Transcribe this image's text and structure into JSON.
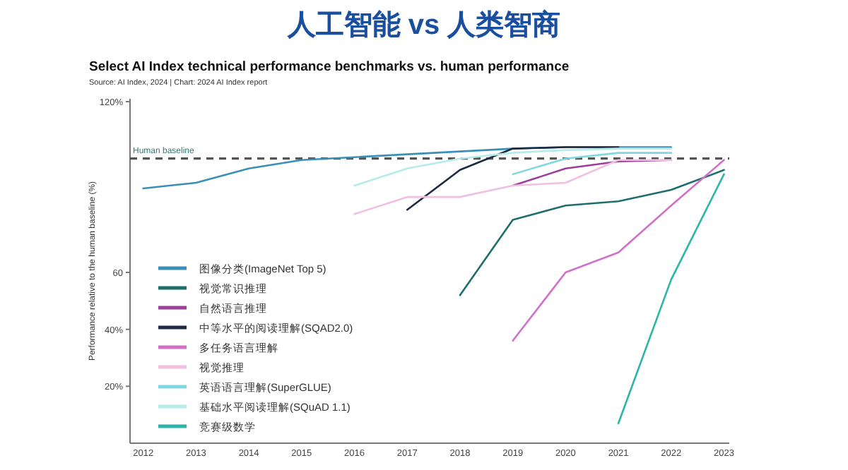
{
  "chart_data": {
    "type": "line",
    "title": "人工智能 vs 人类智商",
    "subtitle": "Select AI Index technical performance benchmarks vs. human performance",
    "annotations": [
      "Source: AI Index, 2024 | Chart: 2024 AI Index report"
    ],
    "ylabel": "Performance relative to the human baseline (%)",
    "xlim": [
      2011.75,
      2023.1
    ],
    "ylim": [
      0,
      121
    ],
    "xticks": [
      2012,
      2013,
      2014,
      2015,
      2016,
      2017,
      2018,
      2019,
      2020,
      2021,
      2022,
      2023
    ],
    "yticks": [
      {
        "value": 20,
        "label": "20%"
      },
      {
        "value": 40,
        "label": "40%"
      },
      {
        "value": 60,
        "label": "60"
      },
      {
        "value": 120,
        "label": "120%"
      }
    ],
    "grid": false,
    "legend": "bottom left",
    "marker": "none",
    "line_style": "solid",
    "ref_lines": [
      {
        "axis": "y",
        "value": 100,
        "label": "Human baseline",
        "color": "#555555",
        "line_style": "dashed"
      }
    ],
    "series": [
      {
        "name": "图像分类(ImageNet Top 5)",
        "color": "#3a8fb7",
        "x": [
          2012,
          2013,
          2014,
          2015,
          2016,
          2017,
          2018,
          2019,
          2020,
          2021,
          2022
        ],
        "values": [
          89.5,
          91.5,
          96.5,
          99.5,
          100.5,
          101.5,
          102.5,
          103.5,
          104,
          104,
          104
        ]
      },
      {
        "name": "视觉常识推理",
        "color": "#1f6e6e",
        "x": [
          2018,
          2019,
          2020,
          2021,
          2022,
          2023
        ],
        "values": [
          52,
          78.5,
          83.5,
          85,
          89,
          96
        ]
      },
      {
        "name": "自然语言推理",
        "color": "#9b3f9b",
        "x": [
          2019,
          2020,
          2021,
          2022
        ],
        "values": [
          90.5,
          96.5,
          99,
          99.5
        ]
      },
      {
        "name": "中等水平的阅读理解(SQAD2.0)",
        "color": "#1e2a44",
        "x": [
          2017,
          2018,
          2019,
          2020,
          2021
        ],
        "values": [
          82,
          96,
          103.5,
          104,
          104
        ]
      },
      {
        "name": "多任务语言理解",
        "color": "#d070c8",
        "x": [
          2019,
          2020,
          2021,
          2022,
          2023
        ],
        "values": [
          36,
          60,
          67,
          83.5,
          99.5
        ]
      },
      {
        "name": "视觉推理",
        "color": "#f0c0e0",
        "x": [
          2016,
          2017,
          2018,
          2019,
          2020,
          2021,
          2022
        ],
        "values": [
          80.5,
          86.5,
          86.5,
          90.5,
          91.5,
          99.5,
          99.5
        ]
      },
      {
        "name": "英语语言理解(SuperGLUE)",
        "color": "#7fd8e0",
        "x": [
          2019,
          2020,
          2021,
          2022
        ],
        "values": [
          94.5,
          100,
          102,
          102
        ]
      },
      {
        "name": "基础水平阅读理解(SQuAD 1.1)",
        "color": "#b5ebe8",
        "x": [
          2016,
          2017,
          2018,
          2019,
          2020,
          2021,
          2022
        ],
        "values": [
          90.5,
          96.5,
          100,
          102,
          103,
          103.5,
          103.5
        ]
      },
      {
        "name": "竞赛级数学",
        "color": "#2bb5a8",
        "x": [
          2021,
          2022,
          2023
        ],
        "values": [
          7,
          57.5,
          94.5
        ]
      }
    ]
  }
}
